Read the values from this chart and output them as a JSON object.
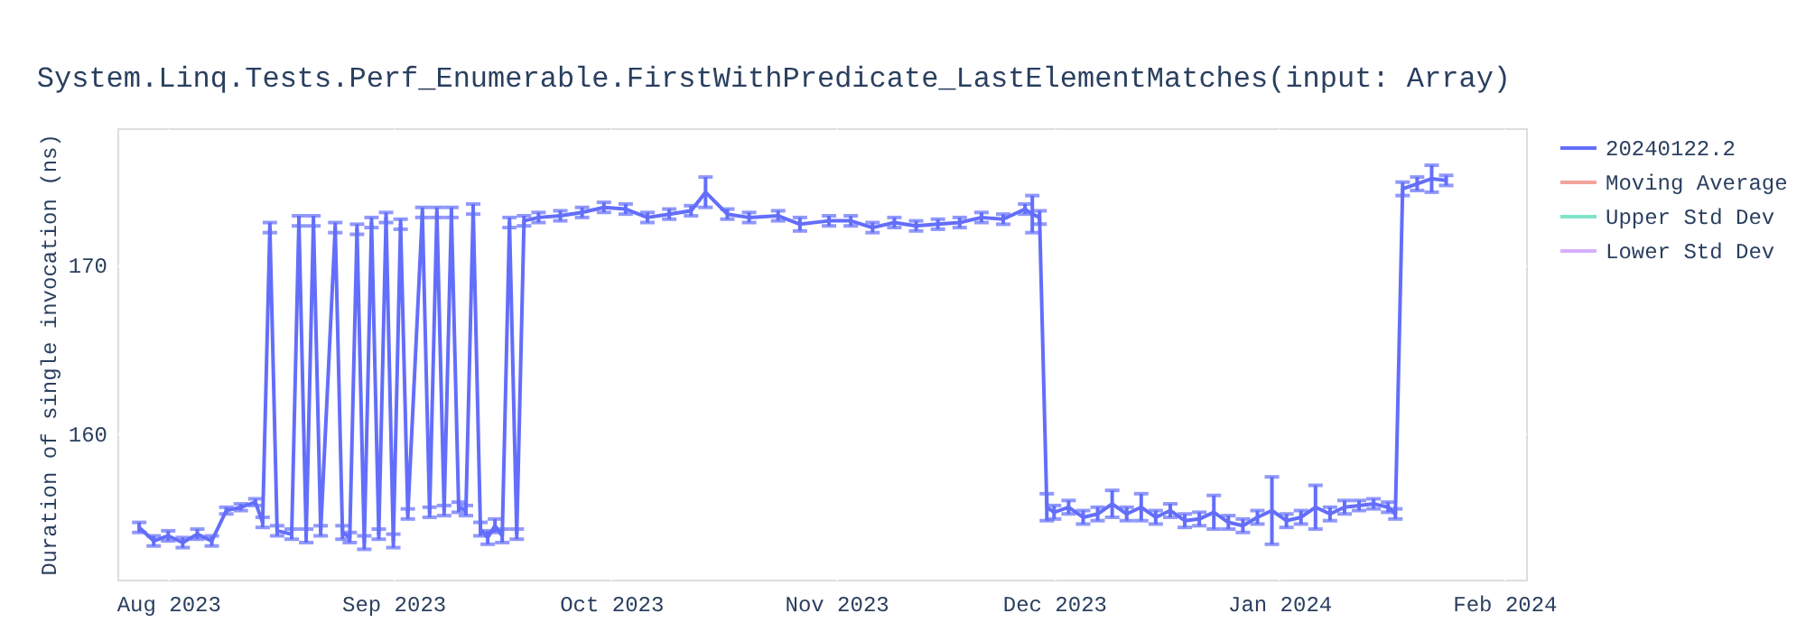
{
  "chart_data": {
    "type": "line",
    "title": "System.Linq.Tests.Perf_Enumerable.FirstWithPredicate_LastElementMatches(input: Array)",
    "ylabel": "Duration of single invocation (ns)",
    "x": [
      "2023-07-28",
      "2023-07-30",
      "2023-08-01",
      "2023-08-03",
      "2023-08-05",
      "2023-08-07",
      "2023-08-09",
      "2023-08-11",
      "2023-08-13",
      "2023-08-14",
      "2023-08-15",
      "2023-08-16",
      "2023-08-18",
      "2023-08-19",
      "2023-08-20",
      "2023-08-21",
      "2023-08-22",
      "2023-08-24",
      "2023-08-25",
      "2023-08-26",
      "2023-08-27",
      "2023-08-28",
      "2023-08-29",
      "2023-08-30",
      "2023-08-31",
      "2023-09-01",
      "2023-09-02",
      "2023-09-03",
      "2023-09-05",
      "2023-09-06",
      "2023-09-07",
      "2023-09-08",
      "2023-09-09",
      "2023-09-10",
      "2023-09-11",
      "2023-09-12",
      "2023-09-13",
      "2023-09-14",
      "2023-09-15",
      "2023-09-16",
      "2023-09-17",
      "2023-09-18",
      "2023-09-19",
      "2023-09-21",
      "2023-09-24",
      "2023-09-27",
      "2023-09-30",
      "2023-10-03",
      "2023-10-06",
      "2023-10-09",
      "2023-10-12",
      "2023-10-14",
      "2023-10-17",
      "2023-10-20",
      "2023-10-24",
      "2023-10-27",
      "2023-10-31",
      "2023-11-03",
      "2023-11-06",
      "2023-11-09",
      "2023-11-12",
      "2023-11-15",
      "2023-11-18",
      "2023-11-21",
      "2023-11-24",
      "2023-11-27",
      "2023-11-28",
      "2023-11-29",
      "2023-11-30",
      "2023-12-01",
      "2023-12-03",
      "2023-12-05",
      "2023-12-07",
      "2023-12-09",
      "2023-12-11",
      "2023-12-13",
      "2023-12-15",
      "2023-12-17",
      "2023-12-19",
      "2023-12-21",
      "2023-12-23",
      "2023-12-25",
      "2023-12-27",
      "2023-12-29",
      "2023-12-31",
      "2024-01-02",
      "2024-01-04",
      "2024-01-06",
      "2024-01-08",
      "2024-01-10",
      "2024-01-12",
      "2024-01-14",
      "2024-01-16",
      "2024-01-17",
      "2024-01-18",
      "2024-01-20",
      "2024-01-22",
      "2024-01-24"
    ],
    "series": [
      {
        "name": "20240122.2",
        "color": "#636efa",
        "values": [
          154.4,
          153.6,
          153.9,
          153.5,
          154.0,
          153.6,
          155.4,
          155.6,
          155.9,
          154.7,
          172.2,
          154.2,
          154.0,
          172.6,
          153.9,
          172.6,
          154.2,
          172.2,
          154.1,
          153.8,
          172.1,
          153.5,
          172.5,
          154.0,
          172.8,
          153.6,
          172.4,
          155.2,
          173.1,
          155.3,
          173.1,
          155.4,
          173.1,
          155.6,
          155.4,
          173.3,
          154.3,
          153.8,
          154.5,
          153.9,
          172.5,
          154.0,
          172.6,
          172.8,
          172.9,
          173.1,
          173.4,
          173.3,
          172.8,
          173.0,
          173.2,
          174.3,
          173.0,
          172.8,
          172.9,
          172.4,
          172.6,
          172.6,
          172.2,
          172.5,
          172.3,
          172.4,
          172.5,
          172.8,
          172.7,
          173.3,
          173.0,
          172.8,
          155.6,
          155.3,
          155.6,
          155.0,
          155.2,
          155.8,
          155.2,
          155.6,
          155.0,
          155.4,
          154.8,
          154.9,
          155.3,
          154.7,
          154.5,
          155.0,
          155.4,
          154.8,
          155.0,
          155.6,
          155.2,
          155.6,
          155.7,
          155.8,
          155.6,
          155.2,
          174.5,
          174.8,
          175.1,
          175.0
        ],
        "errors": [
          0.3,
          0.3,
          0.3,
          0.3,
          0.3,
          0.3,
          0.2,
          0.2,
          0.2,
          0.3,
          0.3,
          0.3,
          0.3,
          0.3,
          0.4,
          0.3,
          0.3,
          0.3,
          0.4,
          0.3,
          0.3,
          0.4,
          0.3,
          0.3,
          0.3,
          0.4,
          0.3,
          0.3,
          0.3,
          0.3,
          0.3,
          0.3,
          0.3,
          0.3,
          0.3,
          0.3,
          0.4,
          0.4,
          0.4,
          0.4,
          0.3,
          0.3,
          0.3,
          0.3,
          0.3,
          0.3,
          0.3,
          0.3,
          0.3,
          0.3,
          0.3,
          0.9,
          0.3,
          0.3,
          0.3,
          0.4,
          0.3,
          0.3,
          0.3,
          0.3,
          0.3,
          0.3,
          0.3,
          0.3,
          0.3,
          0.3,
          1.1,
          0.4,
          0.8,
          0.4,
          0.4,
          0.4,
          0.4,
          0.8,
          0.4,
          0.8,
          0.4,
          0.4,
          0.4,
          0.4,
          1.0,
          0.4,
          0.4,
          0.4,
          2.0,
          0.4,
          0.4,
          1.3,
          0.4,
          0.4,
          0.3,
          0.3,
          0.3,
          0.3,
          0.4,
          0.4,
          0.8,
          0.3
        ]
      },
      {
        "name": "Moving Average",
        "color": "#f3a49a",
        "values": [
          null,
          null,
          null,
          null,
          null,
          null,
          null,
          null,
          null,
          null,
          null,
          null,
          null,
          null,
          null,
          null,
          null,
          null,
          null,
          null,
          null,
          null,
          null,
          null,
          null,
          null,
          null,
          null,
          null,
          null,
          null,
          null,
          null,
          null,
          null,
          null,
          null,
          null,
          null,
          null,
          null,
          null,
          null,
          null,
          null,
          null,
          null,
          null,
          null,
          null,
          null,
          null,
          null,
          null,
          null,
          null,
          null,
          null,
          null,
          null,
          null,
          null,
          null,
          null,
          null,
          null,
          null,
          null,
          null,
          null,
          null,
          null,
          null,
          null,
          null,
          null,
          null,
          null,
          null,
          null,
          null,
          null,
          null,
          null,
          null,
          null,
          null,
          null,
          null,
          null,
          null,
          null,
          null,
          null,
          null,
          null,
          null,
          null
        ]
      },
      {
        "name": "Upper Std Dev",
        "color": "#7fe5ca",
        "values": [
          null,
          null,
          null,
          null,
          null,
          null,
          null,
          null,
          null,
          null,
          null,
          null,
          null,
          null,
          null,
          null,
          null,
          null,
          null,
          null,
          null,
          null,
          null,
          null,
          null,
          null,
          null,
          null,
          null,
          null,
          null,
          null,
          null,
          null,
          null,
          null,
          null,
          null,
          null,
          null,
          null,
          null,
          null,
          null,
          null,
          null,
          null,
          null,
          null,
          null,
          null,
          null,
          null,
          null,
          null,
          null,
          null,
          null,
          null,
          null,
          null,
          null,
          null,
          null,
          null,
          null,
          null,
          null,
          null,
          null,
          null,
          null,
          null,
          null,
          null,
          null,
          null,
          null,
          null,
          null,
          null,
          null,
          null,
          null,
          null,
          null,
          null,
          null,
          null,
          null,
          null,
          null,
          null,
          null,
          null,
          null,
          null,
          null
        ]
      },
      {
        "name": "Lower Std Dev",
        "color": "#d5b1fc",
        "values": [
          null,
          null,
          null,
          null,
          null,
          null,
          null,
          null,
          null,
          null,
          null,
          null,
          null,
          null,
          null,
          null,
          null,
          null,
          null,
          null,
          null,
          null,
          null,
          null,
          null,
          null,
          null,
          null,
          null,
          null,
          null,
          null,
          null,
          null,
          null,
          null,
          null,
          null,
          null,
          null,
          null,
          null,
          null,
          null,
          null,
          null,
          null,
          null,
          null,
          null,
          null,
          null,
          null,
          null,
          null,
          null,
          null,
          null,
          null,
          null,
          null,
          null,
          null,
          null,
          null,
          null,
          null,
          null,
          null,
          null,
          null,
          null,
          null,
          null,
          null,
          null,
          null,
          null,
          null,
          null,
          null,
          null,
          null,
          null,
          null,
          null,
          null,
          null,
          null,
          null,
          null,
          null,
          null,
          null,
          null,
          null,
          null,
          null
        ]
      }
    ],
    "xlim": [
      "2023-07-25",
      "2024-02-04"
    ],
    "xticks": [
      {
        "value": "2023-08-01",
        "label": "Aug 2023"
      },
      {
        "value": "2023-09-01",
        "label": "Sep 2023"
      },
      {
        "value": "2023-10-01",
        "label": "Oct 2023"
      },
      {
        "value": "2023-11-01",
        "label": "Nov 2023"
      },
      {
        "value": "2023-12-01",
        "label": "Dec 2023"
      },
      {
        "value": "2024-01-01",
        "label": "Jan 2024"
      },
      {
        "value": "2024-02-01",
        "label": "Feb 2024"
      }
    ],
    "ylim": [
      151.3,
      178.1
    ],
    "yticks": [
      160,
      170
    ],
    "grid": true,
    "legend": "top right"
  }
}
